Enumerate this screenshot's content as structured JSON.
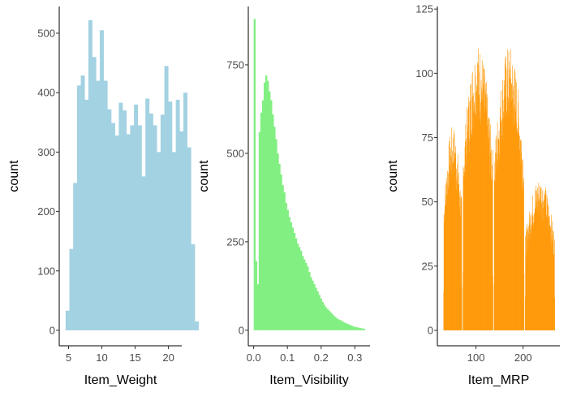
{
  "chart_data": [
    {
      "type": "histogram",
      "xlabel": "Item_Weight",
      "ylabel": "count",
      "color": "#a3d2e2",
      "xlim": [
        3.6,
        22.0
      ],
      "ylim": [
        -26,
        545
      ],
      "xticks": [
        5,
        10,
        15,
        20
      ],
      "yticks": [
        0,
        100,
        200,
        300,
        400,
        500
      ],
      "bin_start": 4.555,
      "bin_width": 0.5706,
      "counts": [
        33,
        137,
        248,
        412,
        429,
        388,
        522,
        460,
        420,
        505,
        420,
        372,
        349,
        328,
        383,
        370,
        330,
        345,
        380,
        345,
        259,
        390,
        365,
        345,
        300,
        363,
        445,
        385,
        300,
        388,
        335,
        400,
        308,
        145,
        15
      ]
    },
    {
      "type": "histogram",
      "xlabel": "Item_Visibility",
      "ylabel": "count",
      "color": "#82ef82",
      "xlim": [
        -0.016,
        0.345
      ],
      "ylim": [
        -44,
        915
      ],
      "xticks": [
        0.0,
        0.1,
        0.2,
        0.3
      ],
      "yticks": [
        0,
        250,
        500,
        750
      ],
      "bin_start": 0.0,
      "bin_width": 0.004926,
      "counts": [
        880,
        195,
        130,
        560,
        615,
        650,
        700,
        720,
        705,
        675,
        650,
        610,
        575,
        540,
        500,
        470,
        440,
        410,
        390,
        360,
        340,
        320,
        305,
        290,
        275,
        260,
        245,
        235,
        225,
        210,
        200,
        190,
        180,
        165,
        150,
        140,
        130,
        120,
        110,
        100,
        90,
        80,
        72,
        65,
        60,
        55,
        50,
        45,
        40,
        36,
        32,
        30,
        28,
        25,
        22,
        20,
        18,
        16,
        14,
        12,
        10,
        9,
        8,
        7,
        6,
        5,
        4
      ]
    },
    {
      "type": "histogram",
      "xlabel": "Item_MRP",
      "ylabel": "count",
      "color": "#ff9a0c",
      "xlim": [
        18.0,
        278.0
      ],
      "ylim": [
        -6,
        126
      ],
      "xticks": [
        100,
        200
      ],
      "yticks": [
        0,
        25,
        50,
        75,
        100,
        125
      ],
      "segments": [
        {
          "start": 31.0,
          "end": 70.0,
          "peak": 80
        },
        {
          "start": 72.0,
          "end": 136.0,
          "peak": 112
        },
        {
          "start": 138.0,
          "end": 202.0,
          "peak": 111
        },
        {
          "start": 204.0,
          "end": 267.0,
          "peak": 60
        }
      ]
    }
  ]
}
